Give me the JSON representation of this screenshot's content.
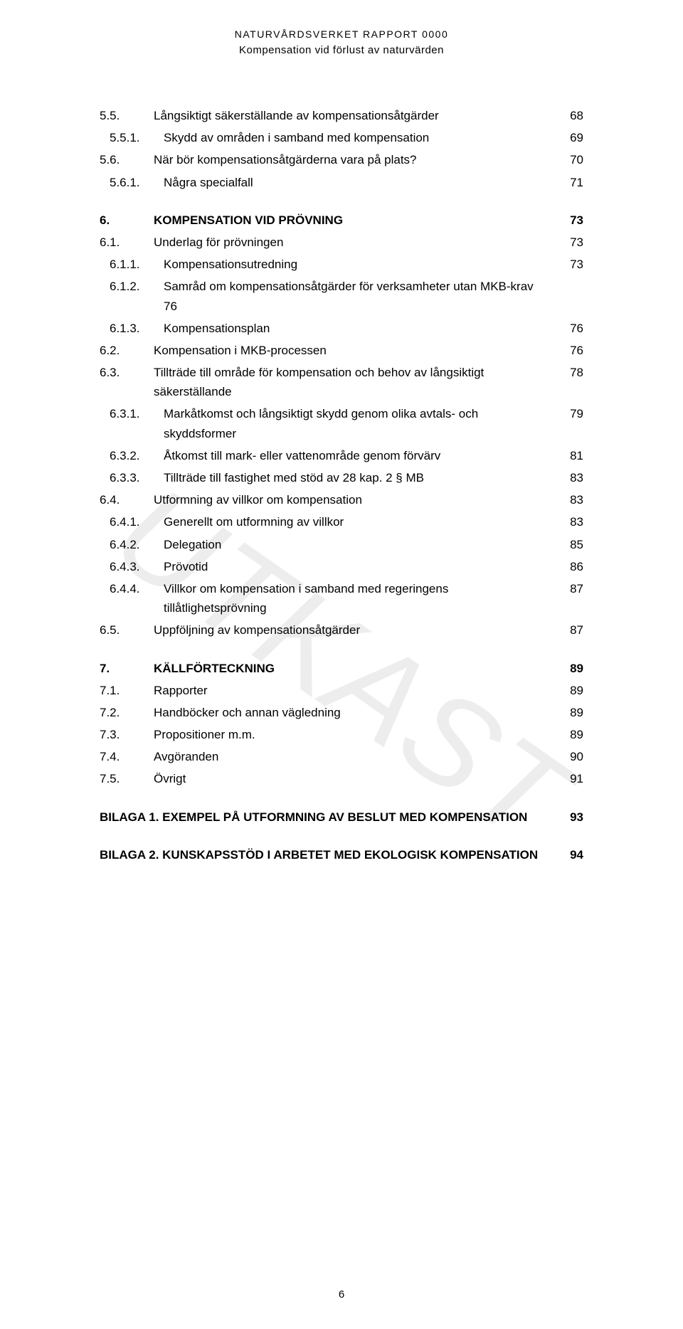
{
  "header": {
    "line1": "NATURVÅRDSVERKET RAPPORT 0000",
    "line2": "Kompensation vid förlust av naturvärden"
  },
  "watermark": "UTKAST",
  "page_number": "6",
  "toc": [
    {
      "num": "5.5.",
      "label": "Långsiktigt säkerställande av kompensationsåtgärder",
      "page": "68",
      "indent": 0,
      "bold": false,
      "gap": false
    },
    {
      "num": "5.5.1.",
      "label": "Skydd av områden i samband med kompensation",
      "page": "69",
      "indent": 1,
      "bold": false,
      "gap": false
    },
    {
      "num": "5.6.",
      "label": "När bör kompensationsåtgärderna vara på plats?",
      "page": "70",
      "indent": 0,
      "bold": false,
      "gap": false
    },
    {
      "num": "5.6.1.",
      "label": "Några specialfall",
      "page": "71",
      "indent": 1,
      "bold": false,
      "gap": false
    },
    {
      "num": "6.",
      "label": "KOMPENSATION VID PRÖVNING",
      "page": "73",
      "indent": 0,
      "bold": true,
      "gap": true
    },
    {
      "num": "6.1.",
      "label": "Underlag för prövningen",
      "page": "73",
      "indent": 0,
      "bold": false,
      "gap": false
    },
    {
      "num": "6.1.1.",
      "label": "Kompensationsutredning",
      "page": "73",
      "indent": 1,
      "bold": false,
      "gap": false
    },
    {
      "num": "6.1.2.",
      "label": "Samråd om kompensationsåtgärder för verksamheter utan MKB-krav 76",
      "page": "",
      "indent": 1,
      "bold": false,
      "gap": false
    },
    {
      "num": "6.1.3.",
      "label": "Kompensationsplan",
      "page": "76",
      "indent": 1,
      "bold": false,
      "gap": false
    },
    {
      "num": "6.2.",
      "label": "Kompensation i MKB-processen",
      "page": "76",
      "indent": 0,
      "bold": false,
      "gap": false
    },
    {
      "num": "6.3.",
      "label": "Tillträde till område för kompensation och behov av långsiktigt säkerställande",
      "page": "78",
      "indent": 0,
      "bold": false,
      "gap": false
    },
    {
      "num": "6.3.1.",
      "label": "Markåtkomst och långsiktigt skydd genom olika avtals- och skyddsformer",
      "page": "79",
      "indent": 1,
      "bold": false,
      "gap": false
    },
    {
      "num": "6.3.2.",
      "label": "Åtkomst till mark- eller vattenområde genom förvärv",
      "page": "81",
      "indent": 1,
      "bold": false,
      "gap": false
    },
    {
      "num": "6.3.3.",
      "label": "Tillträde till fastighet med stöd av 28 kap. 2 § MB",
      "page": "83",
      "indent": 1,
      "bold": false,
      "gap": false
    },
    {
      "num": "6.4.",
      "label": "Utformning av villkor om kompensation",
      "page": "83",
      "indent": 0,
      "bold": false,
      "gap": false
    },
    {
      "num": "6.4.1.",
      "label": "Generellt om utformning av villkor",
      "page": "83",
      "indent": 1,
      "bold": false,
      "gap": false
    },
    {
      "num": "6.4.2.",
      "label": "Delegation",
      "page": "85",
      "indent": 1,
      "bold": false,
      "gap": false
    },
    {
      "num": "6.4.3.",
      "label": "Prövotid",
      "page": "86",
      "indent": 1,
      "bold": false,
      "gap": false
    },
    {
      "num": "6.4.4.",
      "label": "Villkor om kompensation i samband med regeringens tillåtlighetsprövning",
      "page": "87",
      "indent": 1,
      "bold": false,
      "gap": false
    },
    {
      "num": "6.5.",
      "label": "Uppföljning av kompensationsåtgärder",
      "page": "87",
      "indent": 0,
      "bold": false,
      "gap": false
    },
    {
      "num": "7.",
      "label": "KÄLLFÖRTECKNING",
      "page": "89",
      "indent": 0,
      "bold": true,
      "gap": true
    },
    {
      "num": "7.1.",
      "label": "Rapporter",
      "page": "89",
      "indent": 0,
      "bold": false,
      "gap": false
    },
    {
      "num": "7.2.",
      "label": "Handböcker och annan vägledning",
      "page": "89",
      "indent": 0,
      "bold": false,
      "gap": false
    },
    {
      "num": "7.3.",
      "label": "Propositioner m.m.",
      "page": "89",
      "indent": 0,
      "bold": false,
      "gap": false
    },
    {
      "num": "7.4.",
      "label": "Avgöranden",
      "page": "90",
      "indent": 0,
      "bold": false,
      "gap": false
    },
    {
      "num": "7.5.",
      "label": "Övrigt",
      "page": "91",
      "indent": 0,
      "bold": false,
      "gap": false
    },
    {
      "num": "",
      "label": "BILAGA 1. EXEMPEL PÅ UTFORMNING AV BESLUT MED KOMPENSATION",
      "page": "93",
      "indent": 0,
      "bold": true,
      "gap": true
    },
    {
      "num": "",
      "label": "BILAGA 2. KUNSKAPSSTÖD I ARBETET MED EKOLOGISK KOMPENSATION",
      "page": "94",
      "indent": 0,
      "bold": true,
      "gap": true
    }
  ]
}
